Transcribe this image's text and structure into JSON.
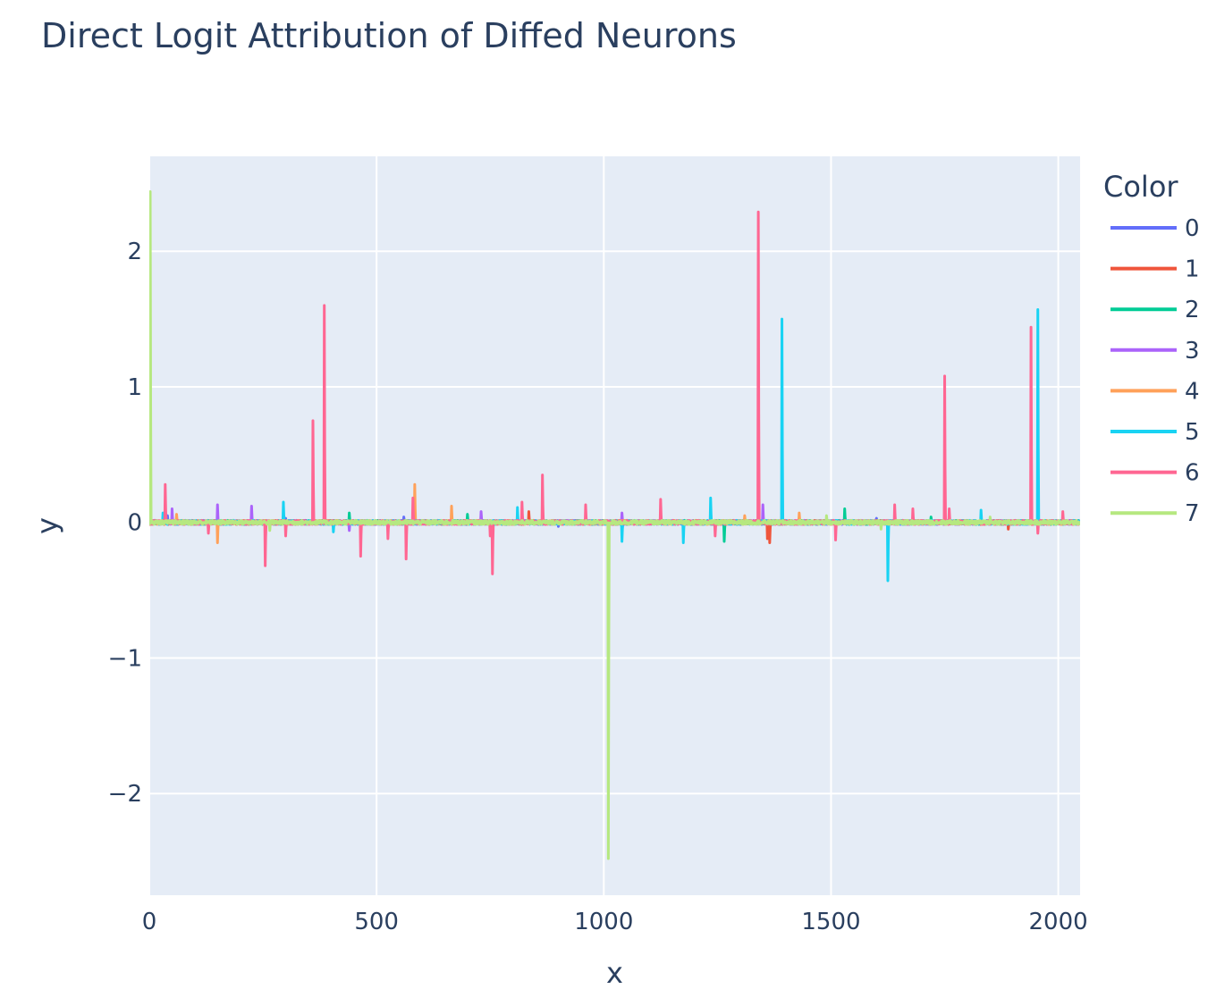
{
  "chart_data": {
    "type": "line",
    "title": "Direct Logit Attribution of Diffed Neurons",
    "xlabel": "x",
    "ylabel": "y",
    "xlim": [
      0,
      2048
    ],
    "ylim": [
      -2.75,
      2.7
    ],
    "xticks": [
      0,
      500,
      1000,
      1500,
      2000
    ],
    "yticks": [
      -2,
      -1,
      0,
      1,
      2
    ],
    "xtick_labels": [
      "0",
      "500",
      "1000",
      "1500",
      "2000"
    ],
    "ytick_labels": [
      "−2",
      "−1",
      "0",
      "1",
      "2"
    ],
    "grid": true,
    "legend": {
      "title": "Color",
      "placement": "right"
    },
    "series": [
      {
        "name": "0",
        "color": "#636efa",
        "spikes": [
          [
            40,
            0.05
          ],
          [
            300,
            0.03
          ],
          [
            560,
            0.04
          ],
          [
            900,
            -0.03
          ],
          [
            1600,
            0.03
          ]
        ]
      },
      {
        "name": "1",
        "color": "#ef553b",
        "spikes": [
          [
            835,
            0.08
          ],
          [
            1360,
            -0.12
          ],
          [
            1365,
            -0.15
          ],
          [
            1890,
            -0.05
          ]
        ]
      },
      {
        "name": "2",
        "color": "#00cc96",
        "spikes": [
          [
            440,
            0.07
          ],
          [
            700,
            0.06
          ],
          [
            1265,
            -0.14
          ],
          [
            1530,
            0.1
          ],
          [
            1720,
            0.04
          ]
        ]
      },
      {
        "name": "3",
        "color": "#ab63fa",
        "spikes": [
          [
            50,
            0.1
          ],
          [
            150,
            0.13
          ],
          [
            225,
            0.12
          ],
          [
            440,
            -0.06
          ],
          [
            730,
            0.08
          ],
          [
            1040,
            0.07
          ],
          [
            1350,
            0.13
          ]
        ]
      },
      {
        "name": "4",
        "color": "#ffa15a",
        "spikes": [
          [
            60,
            0.06
          ],
          [
            150,
            -0.15
          ],
          [
            584,
            0.28
          ],
          [
            665,
            0.12
          ],
          [
            1310,
            0.05
          ],
          [
            1430,
            0.07
          ]
        ]
      },
      {
        "name": "5",
        "color": "#19d3f3",
        "spikes": [
          [
            30,
            0.07
          ],
          [
            295,
            0.15
          ],
          [
            405,
            -0.07
          ],
          [
            810,
            0.11
          ],
          [
            1040,
            -0.14
          ],
          [
            1175,
            -0.15
          ],
          [
            1235,
            0.18
          ],
          [
            1392,
            1.5
          ],
          [
            1625,
            -0.43
          ],
          [
            1830,
            0.09
          ],
          [
            1955,
            1.57
          ]
        ]
      },
      {
        "name": "6",
        "color": "#ff6692",
        "spikes": [
          [
            35,
            0.28
          ],
          [
            130,
            -0.08
          ],
          [
            255,
            -0.32
          ],
          [
            300,
            -0.1
          ],
          [
            360,
            0.75
          ],
          [
            385,
            1.6
          ],
          [
            465,
            -0.25
          ],
          [
            525,
            -0.12
          ],
          [
            565,
            -0.27
          ],
          [
            580,
            0.18
          ],
          [
            750,
            -0.1
          ],
          [
            755,
            -0.38
          ],
          [
            820,
            0.15
          ],
          [
            865,
            0.35
          ],
          [
            960,
            0.13
          ],
          [
            1125,
            0.17
          ],
          [
            1245,
            -0.1
          ],
          [
            1340,
            2.29
          ],
          [
            1510,
            -0.13
          ],
          [
            1640,
            0.13
          ],
          [
            1680,
            0.1
          ],
          [
            1750,
            1.08
          ],
          [
            1760,
            0.1
          ],
          [
            1940,
            1.44
          ],
          [
            1955,
            -0.08
          ],
          [
            2010,
            0.08
          ]
        ]
      },
      {
        "name": "7",
        "color": "#b6e880",
        "spikes": [
          [
            2,
            2.44
          ],
          [
            265,
            -0.06
          ],
          [
            1010,
            -2.48
          ],
          [
            1490,
            0.05
          ],
          [
            1610,
            -0.05
          ],
          [
            1850,
            0.04
          ]
        ]
      }
    ]
  }
}
